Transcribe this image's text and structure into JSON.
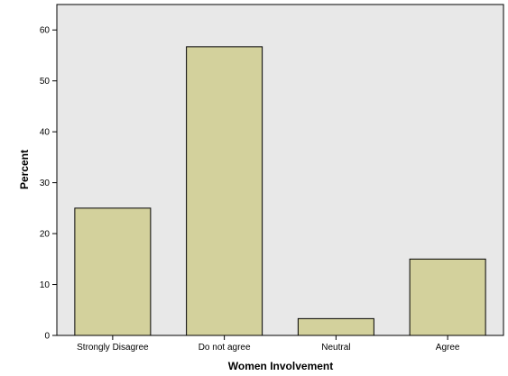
{
  "chart_data": {
    "type": "bar",
    "categories": [
      "Strongly Disagree",
      "Do not agree",
      "Neutral",
      "Agree"
    ],
    "values": [
      25.0,
      56.7,
      3.3,
      15.0
    ],
    "xlabel": "Women Involvement",
    "ylabel": "Percent",
    "ylim": [
      0,
      65
    ],
    "yticks": [
      0,
      10,
      20,
      30,
      40,
      50,
      60
    ],
    "grid": false,
    "legend": "none",
    "colors": {
      "plot_background": "#e8e8e8",
      "bar_fill": "#d3d19c",
      "bar_stroke": "#000000"
    }
  }
}
